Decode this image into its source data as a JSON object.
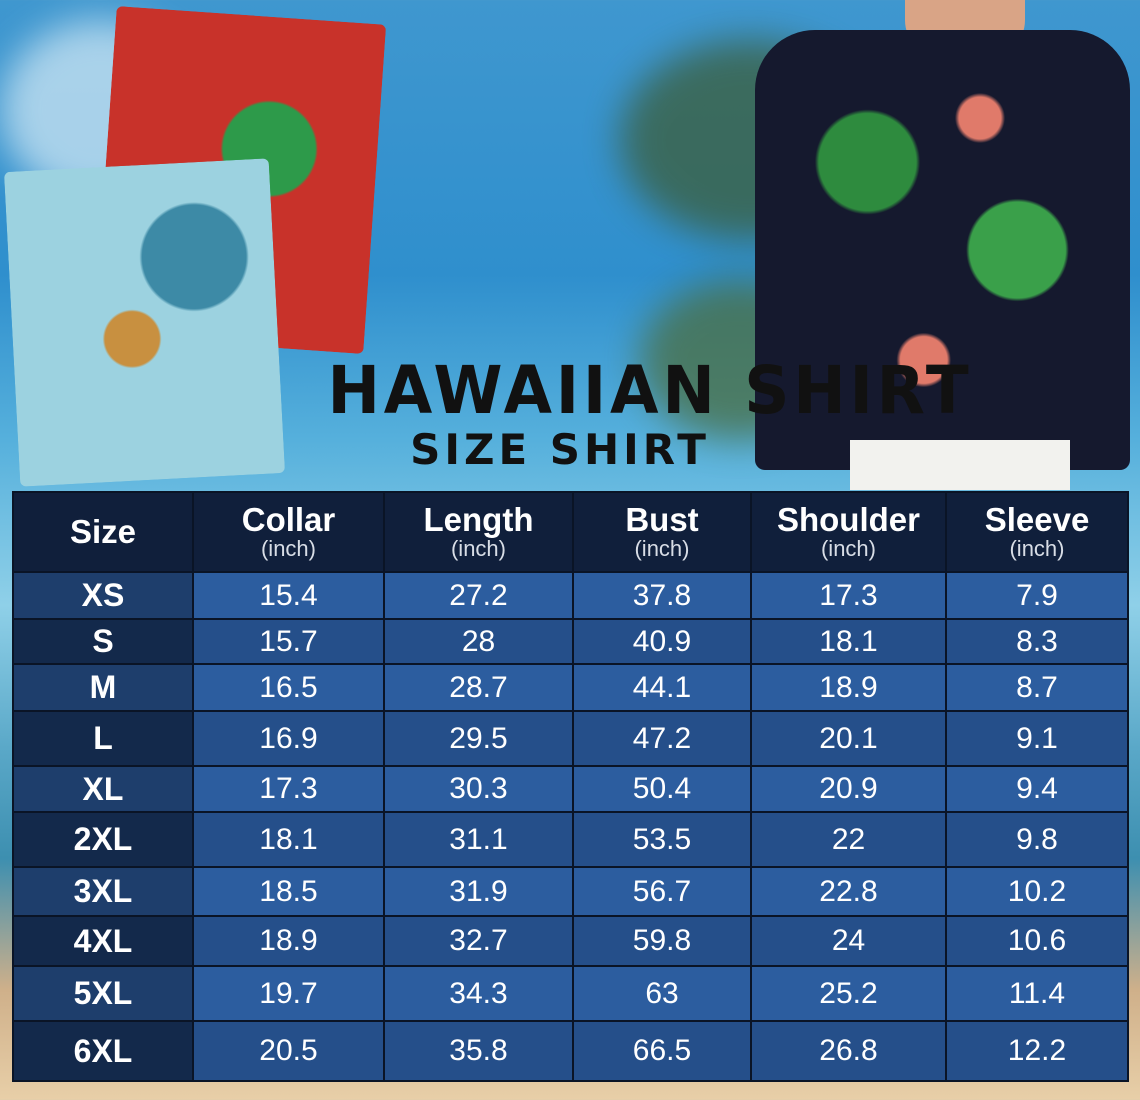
{
  "title": "HAWAIIAN SHIRT",
  "subtitle": "SIZE SHIRT",
  "table": {
    "headers": [
      {
        "label": "Size",
        "unit": ""
      },
      {
        "label": "Collar",
        "unit": "(inch)"
      },
      {
        "label": "Length",
        "unit": "(inch)"
      },
      {
        "label": "Bust",
        "unit": "(inch)"
      },
      {
        "label": "Shoulder",
        "unit": "(inch)"
      },
      {
        "label": "Sleeve",
        "unit": "(inch)"
      }
    ],
    "rows": [
      [
        "XS",
        "15.4",
        "27.2",
        "37.8",
        "17.3",
        "7.9"
      ],
      [
        "S",
        "15.7",
        "28",
        "40.9",
        "18.1",
        "8.3"
      ],
      [
        "M",
        "16.5",
        "28.7",
        "44.1",
        "18.9",
        "8.7"
      ],
      [
        "L",
        "16.9",
        "29.5",
        "47.2",
        "20.1",
        "9.1"
      ],
      [
        "XL",
        "17.3",
        "30.3",
        "50.4",
        "20.9",
        "9.4"
      ],
      [
        "2XL",
        "18.1",
        "31.1",
        "53.5",
        "22",
        "9.8"
      ],
      [
        "3XL",
        "18.5",
        "31.9",
        "56.7",
        "22.8",
        "10.2"
      ],
      [
        "4XL",
        "18.9",
        "32.7",
        "59.8",
        "24",
        "10.6"
      ],
      [
        "5XL",
        "19.7",
        "34.3",
        "63",
        "25.2",
        "11.4"
      ],
      [
        "6XL",
        "20.5",
        "35.8",
        "66.5",
        "26.8",
        "12.2"
      ]
    ]
  },
  "colors": {
    "header": "#101f3b",
    "row_light": "#2c5d9f",
    "row_dark": "#254f8a",
    "size_col": "#13294b"
  }
}
